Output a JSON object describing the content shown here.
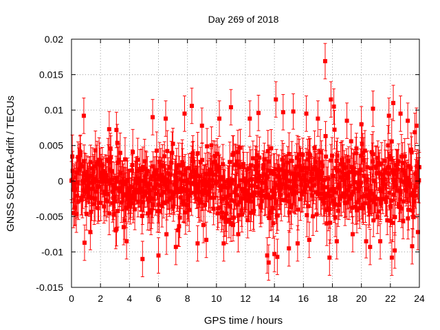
{
  "chart_data": {
    "type": "scatter",
    "title": "Day 269 of 2018",
    "xlabel": "GPS time / hours",
    "ylabel": "GNSS SOLERA-drift / TECUs",
    "xlim": [
      0,
      24
    ],
    "ylim": [
      -0.015,
      0.02
    ],
    "xticks": [
      0,
      2,
      4,
      6,
      8,
      10,
      12,
      14,
      16,
      18,
      20,
      22,
      24
    ],
    "yticks": [
      -0.015,
      -0.01,
      -0.005,
      0,
      0.005,
      0.01,
      0.015,
      0.02
    ],
    "xtick_labels": [
      "0",
      "2",
      "4",
      "6",
      "8",
      "10",
      "12",
      "14",
      "16",
      "18",
      "20",
      "22",
      "24"
    ],
    "ytick_labels": [
      "-0.015",
      "-0.01",
      "-0.005",
      "0",
      "0.005",
      "0.01",
      "0.015",
      "0.02"
    ],
    "grid": true,
    "series_color": "#ff0000",
    "series": [
      {
        "name": "SOLERA-drift",
        "error_bars": true,
        "approx_error": 0.0025,
        "points": [
          [
            0.85,
            0.0092
          ],
          [
            0.9,
            -0.0087
          ],
          [
            1.3,
            -0.0072
          ],
          [
            2.6,
            0.0073
          ],
          [
            3.1,
            0.0072
          ],
          [
            3.6,
            -0.0065
          ],
          [
            3.8,
            -0.0085
          ],
          [
            4.9,
            -0.011
          ],
          [
            5.6,
            0.009
          ],
          [
            6.0,
            -0.0105
          ],
          [
            6.5,
            0.0088
          ],
          [
            7.2,
            -0.0093
          ],
          [
            7.8,
            0.0095
          ],
          [
            8.3,
            0.0106
          ],
          [
            8.7,
            -0.0088
          ],
          [
            9.0,
            0.0078
          ],
          [
            9.3,
            -0.0083
          ],
          [
            10.2,
            0.0088
          ],
          [
            10.5,
            -0.0088
          ],
          [
            11.0,
            0.0104
          ],
          [
            11.5,
            -0.0075
          ],
          [
            12.3,
            0.0088
          ],
          [
            12.9,
            0.0096
          ],
          [
            13.5,
            -0.0105
          ],
          [
            13.6,
            -0.0115
          ],
          [
            14.0,
            -0.0103
          ],
          [
            14.1,
            0.0115
          ],
          [
            14.2,
            -0.0107
          ],
          [
            14.6,
            0.0097
          ],
          [
            15.0,
            -0.0095
          ],
          [
            15.3,
            0.0098
          ],
          [
            15.6,
            -0.0088
          ],
          [
            16.2,
            0.0095
          ],
          [
            16.4,
            -0.0083
          ],
          [
            17.0,
            0.0088
          ],
          [
            17.5,
            0.0169
          ],
          [
            17.9,
            0.0115
          ],
          [
            17.8,
            -0.0108
          ],
          [
            18.1,
            0.0105
          ],
          [
            18.3,
            -0.0085
          ],
          [
            19.0,
            0.0085
          ],
          [
            19.4,
            -0.0075
          ],
          [
            20.0,
            0.008
          ],
          [
            20.6,
            -0.0093
          ],
          [
            20.8,
            0.0102
          ],
          [
            21.3,
            -0.0085
          ],
          [
            21.9,
            0.0092
          ],
          [
            22.1,
            -0.0108
          ],
          [
            22.2,
            0.011
          ],
          [
            22.3,
            -0.0098
          ],
          [
            22.7,
            0.0095
          ],
          [
            23.2,
            0.0085
          ],
          [
            23.5,
            -0.0092
          ],
          [
            23.8,
            0.0078
          ],
          [
            23.9,
            -0.0072
          ]
        ]
      }
    ]
  }
}
